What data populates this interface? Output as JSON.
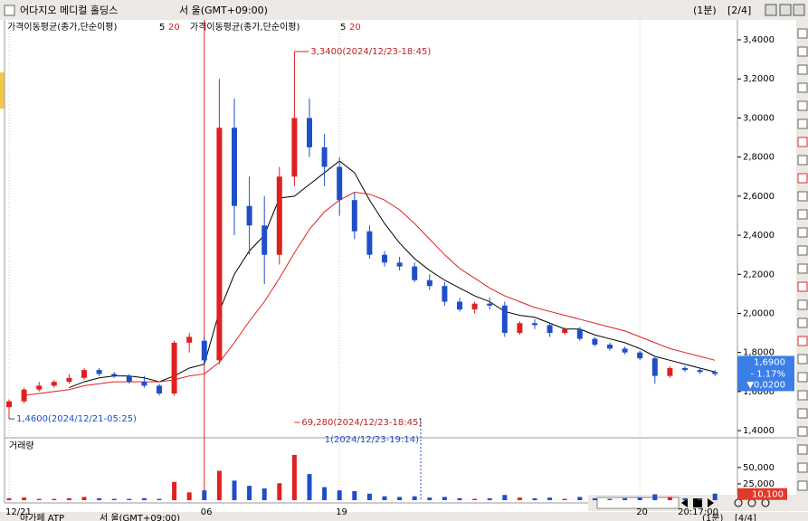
{
  "window": {
    "title": "어다지오 메디컬 홀딩스",
    "exchange": "서   울(GMT+09:00)",
    "interval": "(1분)",
    "page": "[2/4]"
  },
  "bottom_window": {
    "title": "아가페 ATP",
    "exchange": "서   울(GMT+09:00)",
    "interval": "(1분)",
    "page": "[4/4]"
  },
  "chart_data": {
    "type": "candlestick",
    "legends": [
      {
        "label": "가격이동평균(종가,단순이평)"
      },
      {
        "label": "가격이동평균(종가,단순이평)"
      }
    ],
    "categories": [
      "12/21",
      null,
      null,
      null,
      null,
      null,
      null,
      null,
      null,
      null,
      null,
      null,
      null,
      "06",
      null,
      null,
      null,
      null,
      null,
      null,
      null,
      null,
      "19",
      null,
      null,
      null,
      null,
      null,
      null,
      null,
      null,
      null,
      null,
      null,
      null,
      null,
      null,
      null,
      null,
      null,
      null,
      null,
      "20",
      null,
      null,
      null,
      null,
      null
    ],
    "time_label": "20:17:00",
    "open": [
      1.52,
      1.55,
      1.61,
      1.63,
      1.65,
      1.67,
      1.71,
      1.69,
      1.68,
      1.65,
      1.63,
      1.59,
      1.85,
      1.86,
      1.76,
      2.95,
      2.55,
      2.45,
      2.3,
      2.7,
      3.0,
      2.85,
      2.75,
      2.58,
      2.42,
      2.3,
      2.26,
      2.24,
      2.17,
      2.14,
      2.06,
      2.02,
      2.05,
      2.04,
      1.9,
      1.95,
      1.94,
      1.9,
      1.92,
      1.87,
      1.84,
      1.82,
      1.8,
      1.77,
      1.68,
      1.72,
      1.71,
      1.7
    ],
    "high": [
      1.56,
      1.62,
      1.65,
      1.66,
      1.69,
      1.72,
      1.72,
      1.7,
      1.69,
      1.68,
      1.64,
      1.86,
      1.9,
      1.88,
      3.2,
      3.1,
      2.7,
      2.6,
      2.75,
      3.34,
      3.1,
      2.92,
      2.8,
      2.62,
      2.45,
      2.32,
      2.29,
      2.26,
      2.2,
      2.16,
      2.08,
      2.06,
      2.08,
      2.06,
      1.96,
      1.97,
      1.95,
      1.93,
      1.93,
      1.88,
      1.85,
      1.83,
      1.81,
      1.78,
      1.73,
      1.73,
      1.72,
      1.71
    ],
    "low": [
      1.46,
      1.54,
      1.6,
      1.62,
      1.64,
      1.66,
      1.68,
      1.67,
      1.64,
      1.62,
      1.58,
      1.58,
      1.8,
      1.74,
      1.74,
      2.4,
      2.3,
      2.15,
      2.25,
      2.65,
      2.8,
      2.65,
      2.5,
      2.38,
      2.28,
      2.24,
      2.22,
      2.16,
      2.12,
      2.04,
      2.01,
      2.0,
      2.02,
      1.88,
      1.89,
      1.92,
      1.88,
      1.89,
      1.86,
      1.83,
      1.81,
      1.79,
      1.76,
      1.64,
      1.67,
      1.7,
      1.69,
      1.68
    ],
    "close": [
      1.55,
      1.61,
      1.63,
      1.65,
      1.67,
      1.71,
      1.69,
      1.68,
      1.65,
      1.63,
      1.59,
      1.85,
      1.88,
      1.76,
      2.95,
      2.55,
      2.45,
      2.3,
      2.7,
      3.0,
      2.85,
      2.75,
      2.58,
      2.42,
      2.3,
      2.26,
      2.24,
      2.17,
      2.14,
      2.06,
      2.02,
      2.05,
      2.04,
      1.9,
      1.95,
      1.94,
      1.9,
      1.92,
      1.87,
      1.84,
      1.82,
      1.8,
      1.77,
      1.68,
      1.72,
      1.71,
      1.7,
      1.69
    ],
    "volume": [
      3000,
      4000,
      2000,
      2000,
      3000,
      5000,
      3000,
      2000,
      2000,
      3000,
      2000,
      28000,
      12000,
      15000,
      45000,
      30000,
      22000,
      18000,
      26000,
      69280,
      40000,
      20000,
      15000,
      14000,
      10000,
      6000,
      5000,
      6000,
      4000,
      5000,
      3000,
      2000,
      3000,
      8000,
      4000,
      3000,
      4000,
      2000,
      5000,
      3000,
      2000,
      3000,
      4000,
      9000,
      5000,
      3000,
      2000,
      10100
    ],
    "up_color": "#e02020",
    "down_color": "#1f4fc8",
    "series": [
      {
        "name": "5",
        "color": "#000000",
        "values": [
          null,
          null,
          null,
          null,
          1.62,
          1.65,
          1.67,
          1.68,
          1.68,
          1.67,
          1.65,
          1.68,
          1.72,
          1.74,
          2.01,
          2.2,
          2.32,
          2.4,
          2.59,
          2.6,
          2.66,
          2.72,
          2.78,
          2.72,
          2.58,
          2.46,
          2.36,
          2.28,
          2.22,
          2.17,
          2.13,
          2.09,
          2.06,
          2.01,
          1.99,
          1.98,
          1.95,
          1.92,
          1.92,
          1.89,
          1.87,
          1.85,
          1.82,
          1.78,
          1.76,
          1.74,
          1.72,
          1.7
        ]
      },
      {
        "name": "20",
        "color": "#e02020",
        "values": [
          null,
          1.58,
          1.59,
          1.6,
          1.61,
          1.63,
          1.64,
          1.65,
          1.65,
          1.65,
          1.65,
          1.66,
          1.68,
          1.69,
          1.75,
          1.85,
          1.96,
          2.06,
          2.18,
          2.31,
          2.43,
          2.52,
          2.58,
          2.62,
          2.61,
          2.58,
          2.53,
          2.46,
          2.38,
          2.3,
          2.23,
          2.18,
          2.13,
          2.09,
          2.06,
          2.03,
          2.01,
          1.99,
          1.97,
          1.95,
          1.93,
          1.91,
          1.88,
          1.85,
          1.82,
          1.8,
          1.78,
          1.76
        ]
      }
    ],
    "ylim": [
      1.368,
      3.502
    ],
    "yticks": [
      {
        "value": 1.4,
        "label": "1,4000"
      },
      {
        "value": 1.6,
        "label": "1,6000"
      },
      {
        "value": 1.8,
        "label": "1,8000"
      },
      {
        "value": 2.0,
        "label": "2,0000"
      },
      {
        "value": 2.2,
        "label": "2,2000"
      },
      {
        "value": 2.4,
        "label": "2,4000"
      },
      {
        "value": 2.6,
        "label": "2,6000"
      },
      {
        "value": 2.8,
        "label": "2,8000"
      },
      {
        "value": 3.0,
        "label": "3,0000"
      },
      {
        "value": 3.2,
        "label": "3,2000"
      },
      {
        "value": 3.4,
        "label": "3,4000"
      }
    ],
    "high_annotation": "3,3400(2024/12/23-18:45)",
    "low_annotation": "1,4600(2024/12/21-05:25)",
    "last_price": {
      "value": 1.69,
      "label": "1,6900"
    },
    "change_pct": "- 1.17%",
    "change": "▼0,0200",
    "volume_panel": {
      "title": "거래량",
      "ylim": [
        0,
        90000
      ],
      "yticks": [
        {
          "value": 25000,
          "label": "25,000"
        },
        {
          "value": 50000,
          "label": "50,000"
        }
      ],
      "max_annotation": "69,280(2024/12/23-18:45)",
      "note_annotation": "1(2024/12/23-19:14)",
      "last_volume": {
        "value": 10100,
        "label": "10,100"
      }
    },
    "xgrid": true
  }
}
